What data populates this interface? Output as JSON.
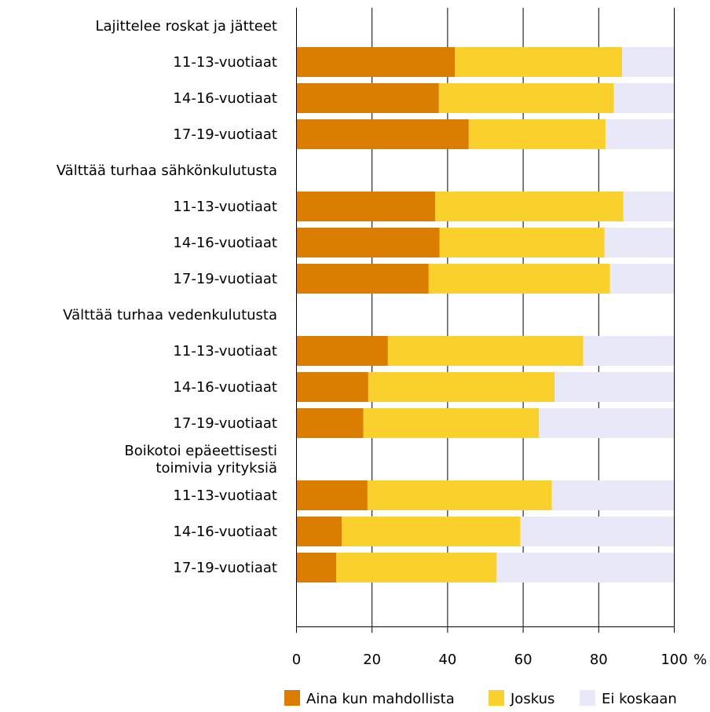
{
  "chart_data": {
    "type": "bar",
    "orientation": "horizontal",
    "stacked": true,
    "groups": [
      {
        "title": [
          "Lajittelee roskat ja jätteet"
        ],
        "rows": [
          {
            "label": "11-13-vuotiaat",
            "values": [
              42,
              44.3,
              13.7
            ]
          },
          {
            "label": "14-16-vuotiaat",
            "values": [
              37.8,
              46.3,
              15.9
            ]
          },
          {
            "label": "17-19-vuotiaat",
            "values": [
              45.7,
              36.2,
              18.1
            ]
          }
        ]
      },
      {
        "title": [
          "Välttää turhaa sähkönkulutusta"
        ],
        "rows": [
          {
            "label": "11-13-vuotiaat",
            "values": [
              36.8,
              49.8,
              13.4
            ]
          },
          {
            "label": "14-16-vuotiaat",
            "values": [
              38,
              43.6,
              18.4
            ]
          },
          {
            "label": "17-19-vuotiaat",
            "values": [
              35.1,
              48,
              16.9
            ]
          }
        ]
      },
      {
        "title": [
          "Välttää turhaa vedenkulutusta"
        ],
        "rows": [
          {
            "label": "11-13-vuotiaat",
            "values": [
              24.3,
              51.7,
              24
            ]
          },
          {
            "label": "14-16-vuotiaat",
            "values": [
              19.1,
              49.3,
              31.6
            ]
          },
          {
            "label": "17-19-vuotiaat",
            "values": [
              17.8,
              46.5,
              35.7
            ]
          }
        ]
      },
      {
        "title": [
          "Boikotoi epäeettisesti",
          "toimivia yrityksiä"
        ],
        "rows": [
          {
            "label": "11-13-vuotiaat",
            "values": [
              18.9,
              48.8,
              32.3
            ]
          },
          {
            "label": "14-16-vuotiaat",
            "values": [
              12.1,
              47.3,
              40.6
            ]
          },
          {
            "label": "17-19-vuotiaat",
            "values": [
              10.6,
              42.5,
              46.9
            ]
          }
        ]
      }
    ],
    "series": [
      {
        "name": "Aina kun mahdollista",
        "color": "#DA7D00"
      },
      {
        "name": "Joskus",
        "color": "#FAD02C"
      },
      {
        "name": "Ei koskaan",
        "color": "#E8E8F8"
      }
    ],
    "x_ticks": [
      "0",
      "20",
      "40",
      "60",
      "80",
      "100"
    ],
    "x_unit": "%",
    "xlim": [
      0,
      100
    ],
    "grid": "vertical",
    "legend": "bottom-right"
  }
}
